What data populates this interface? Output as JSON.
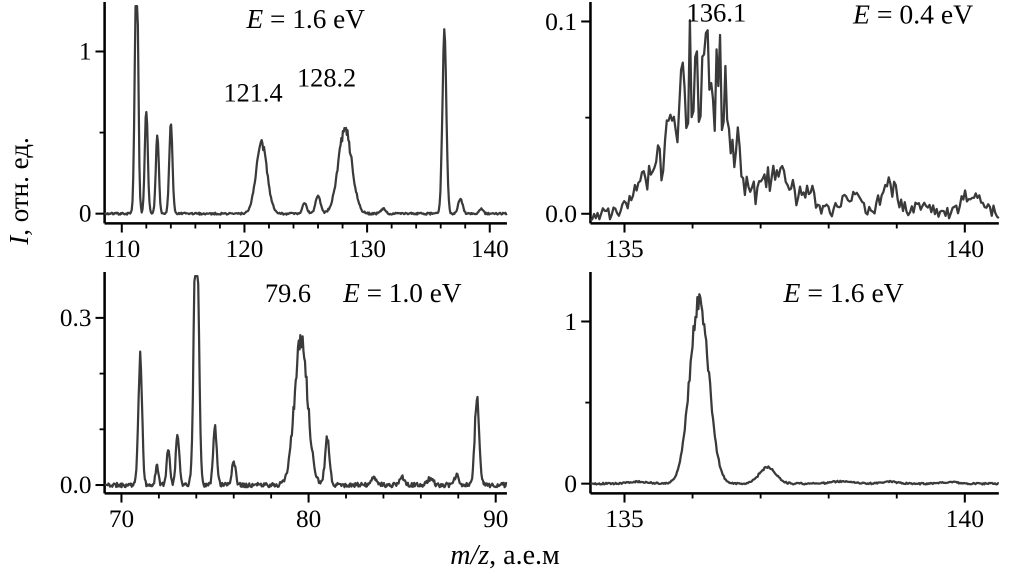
{
  "figure": {
    "background": "#ffffff",
    "line_color": "#3a3a3a",
    "axis_color": "#000000",
    "x_axis_label": {
      "italic": "m/z",
      "rest": ", а.е.м"
    },
    "y_axis_label": {
      "italic": "I",
      "rest": ", отн. ед."
    }
  },
  "chart_data": [
    {
      "id": "top-left",
      "type": "line",
      "energy_label": {
        "italic": "E",
        "rest": " = 1.6 eV"
      },
      "energy_label_pos": [
        0.5,
        0.9
      ],
      "peak_labels": [
        {
          "text": "121.4",
          "x": 120.7,
          "yfrac": 0.56
        },
        {
          "text": "128.2",
          "x": 126.7,
          "yfrac": 0.63
        }
      ],
      "xlim": [
        108.6,
        141.4
      ],
      "ylim": [
        -0.06,
        1.28
      ],
      "xticks": [
        110,
        120,
        130,
        140
      ],
      "xtick_labels": [
        "110",
        "120",
        "130",
        "140"
      ],
      "x_minor_step": 2,
      "yticks": [
        0,
        1
      ],
      "ytick_labels": [
        "0",
        "1"
      ],
      "y_minor": [
        0.5
      ],
      "peaks": [
        [
          111.2,
          1.7,
          0.13
        ],
        [
          112.0,
          0.65,
          0.12
        ],
        [
          112.9,
          0.51,
          0.12
        ],
        [
          114.0,
          0.56,
          0.13
        ],
        [
          121.4,
          0.43,
          0.45
        ],
        [
          124.9,
          0.06,
          0.18
        ],
        [
          126.0,
          0.11,
          0.2
        ],
        [
          128.2,
          0.52,
          0.55
        ],
        [
          131.3,
          0.03,
          0.2
        ],
        [
          136.3,
          1.1,
          0.16
        ],
        [
          137.6,
          0.09,
          0.18
        ],
        [
          139.3,
          0.03,
          0.15
        ]
      ],
      "noise": 0.006,
      "rel_noise": 0.06,
      "samples": 520,
      "seed": 7
    },
    {
      "id": "top-right",
      "type": "line",
      "energy_label": {
        "italic": "E",
        "rest": " = 0.4 eV"
      },
      "energy_label_pos": [
        0.79,
        0.92
      ],
      "peak_labels": [
        {
          "text": "136.1",
          "x": 136.35,
          "yfrac": 0.93
        }
      ],
      "xlim": [
        134.5,
        140.5
      ],
      "ylim": [
        -0.005,
        0.108
      ],
      "xticks": [
        135,
        140
      ],
      "xtick_labels": [
        "135",
        "140"
      ],
      "x_minor_step": 1,
      "yticks": [
        0,
        0.1
      ],
      "ytick_labels": [
        "0.0",
        "0.1"
      ],
      "y_minor": [
        0.05
      ],
      "peaks": [
        [
          136.15,
          0.07,
          0.38
        ],
        [
          135.9,
          0.012,
          0.1
        ],
        [
          136.45,
          0.014,
          0.12
        ],
        [
          135.35,
          0.012,
          0.22
        ],
        [
          137.25,
          0.02,
          0.18
        ],
        [
          137.7,
          0.01,
          0.12
        ],
        [
          138.3,
          0.012,
          0.12
        ],
        [
          138.9,
          0.016,
          0.12
        ],
        [
          139.35,
          0.008,
          0.1
        ],
        [
          140.1,
          0.011,
          0.14
        ]
      ],
      "noise": 0.0035,
      "rel_noise": 0.4,
      "samples": 230,
      "seed": 3
    },
    {
      "id": "bottom-left",
      "type": "line",
      "energy_label": {
        "italic": "E",
        "rest": " = 1.0 eV"
      },
      "energy_label_pos": [
        0.74,
        0.88
      ],
      "peak_labels": [
        {
          "text": "79.6",
          "x": 78.9,
          "yfrac": 0.88
        }
      ],
      "xlim": [
        69.1,
        90.6
      ],
      "ylim": [
        -0.015,
        0.375
      ],
      "xticks": [
        70,
        80,
        90
      ],
      "xtick_labels": [
        "70",
        "80",
        "90"
      ],
      "x_minor_step": 2,
      "yticks": [
        0,
        0.3
      ],
      "ytick_labels": [
        "0.0",
        "0.3"
      ],
      "y_minor": [
        0.1,
        0.2
      ],
      "peaks": [
        [
          71.0,
          0.23,
          0.1
        ],
        [
          71.9,
          0.035,
          0.08
        ],
        [
          72.5,
          0.065,
          0.09
        ],
        [
          73.0,
          0.095,
          0.09
        ],
        [
          74.0,
          0.55,
          0.12
        ],
        [
          75.0,
          0.1,
          0.1
        ],
        [
          76.0,
          0.045,
          0.1
        ],
        [
          79.6,
          0.26,
          0.35
        ],
        [
          81.0,
          0.085,
          0.12
        ],
        [
          83.5,
          0.012,
          0.15
        ],
        [
          85.0,
          0.014,
          0.15
        ],
        [
          86.5,
          0.012,
          0.15
        ],
        [
          87.9,
          0.018,
          0.1
        ],
        [
          89.0,
          0.155,
          0.12
        ]
      ],
      "noise": 0.004,
      "rel_noise": 0.08,
      "samples": 520,
      "seed": 11
    },
    {
      "id": "bottom-right",
      "type": "line",
      "energy_label": {
        "italic": "E",
        "rest": " = 1.6 eV"
      },
      "energy_label_pos": [
        0.62,
        0.88
      ],
      "peak_labels": [],
      "xlim": [
        134.5,
        140.5
      ],
      "ylim": [
        -0.06,
        1.28
      ],
      "xticks": [
        135,
        140
      ],
      "xtick_labels": [
        "135",
        "140"
      ],
      "x_minor_step": 1,
      "yticks": [
        0,
        1
      ],
      "ytick_labels": [
        "0",
        "1"
      ],
      "y_minor": [
        0.5
      ],
      "peaks": [
        [
          136.1,
          1.12,
          0.14
        ],
        [
          137.1,
          0.1,
          0.12
        ],
        [
          135.2,
          0.012,
          0.15
        ],
        [
          138.2,
          0.015,
          0.15
        ],
        [
          138.9,
          0.012,
          0.12
        ],
        [
          139.8,
          0.01,
          0.12
        ]
      ],
      "noise": 0.005,
      "rel_noise": 0.05,
      "samples": 420,
      "seed": 5
    }
  ]
}
